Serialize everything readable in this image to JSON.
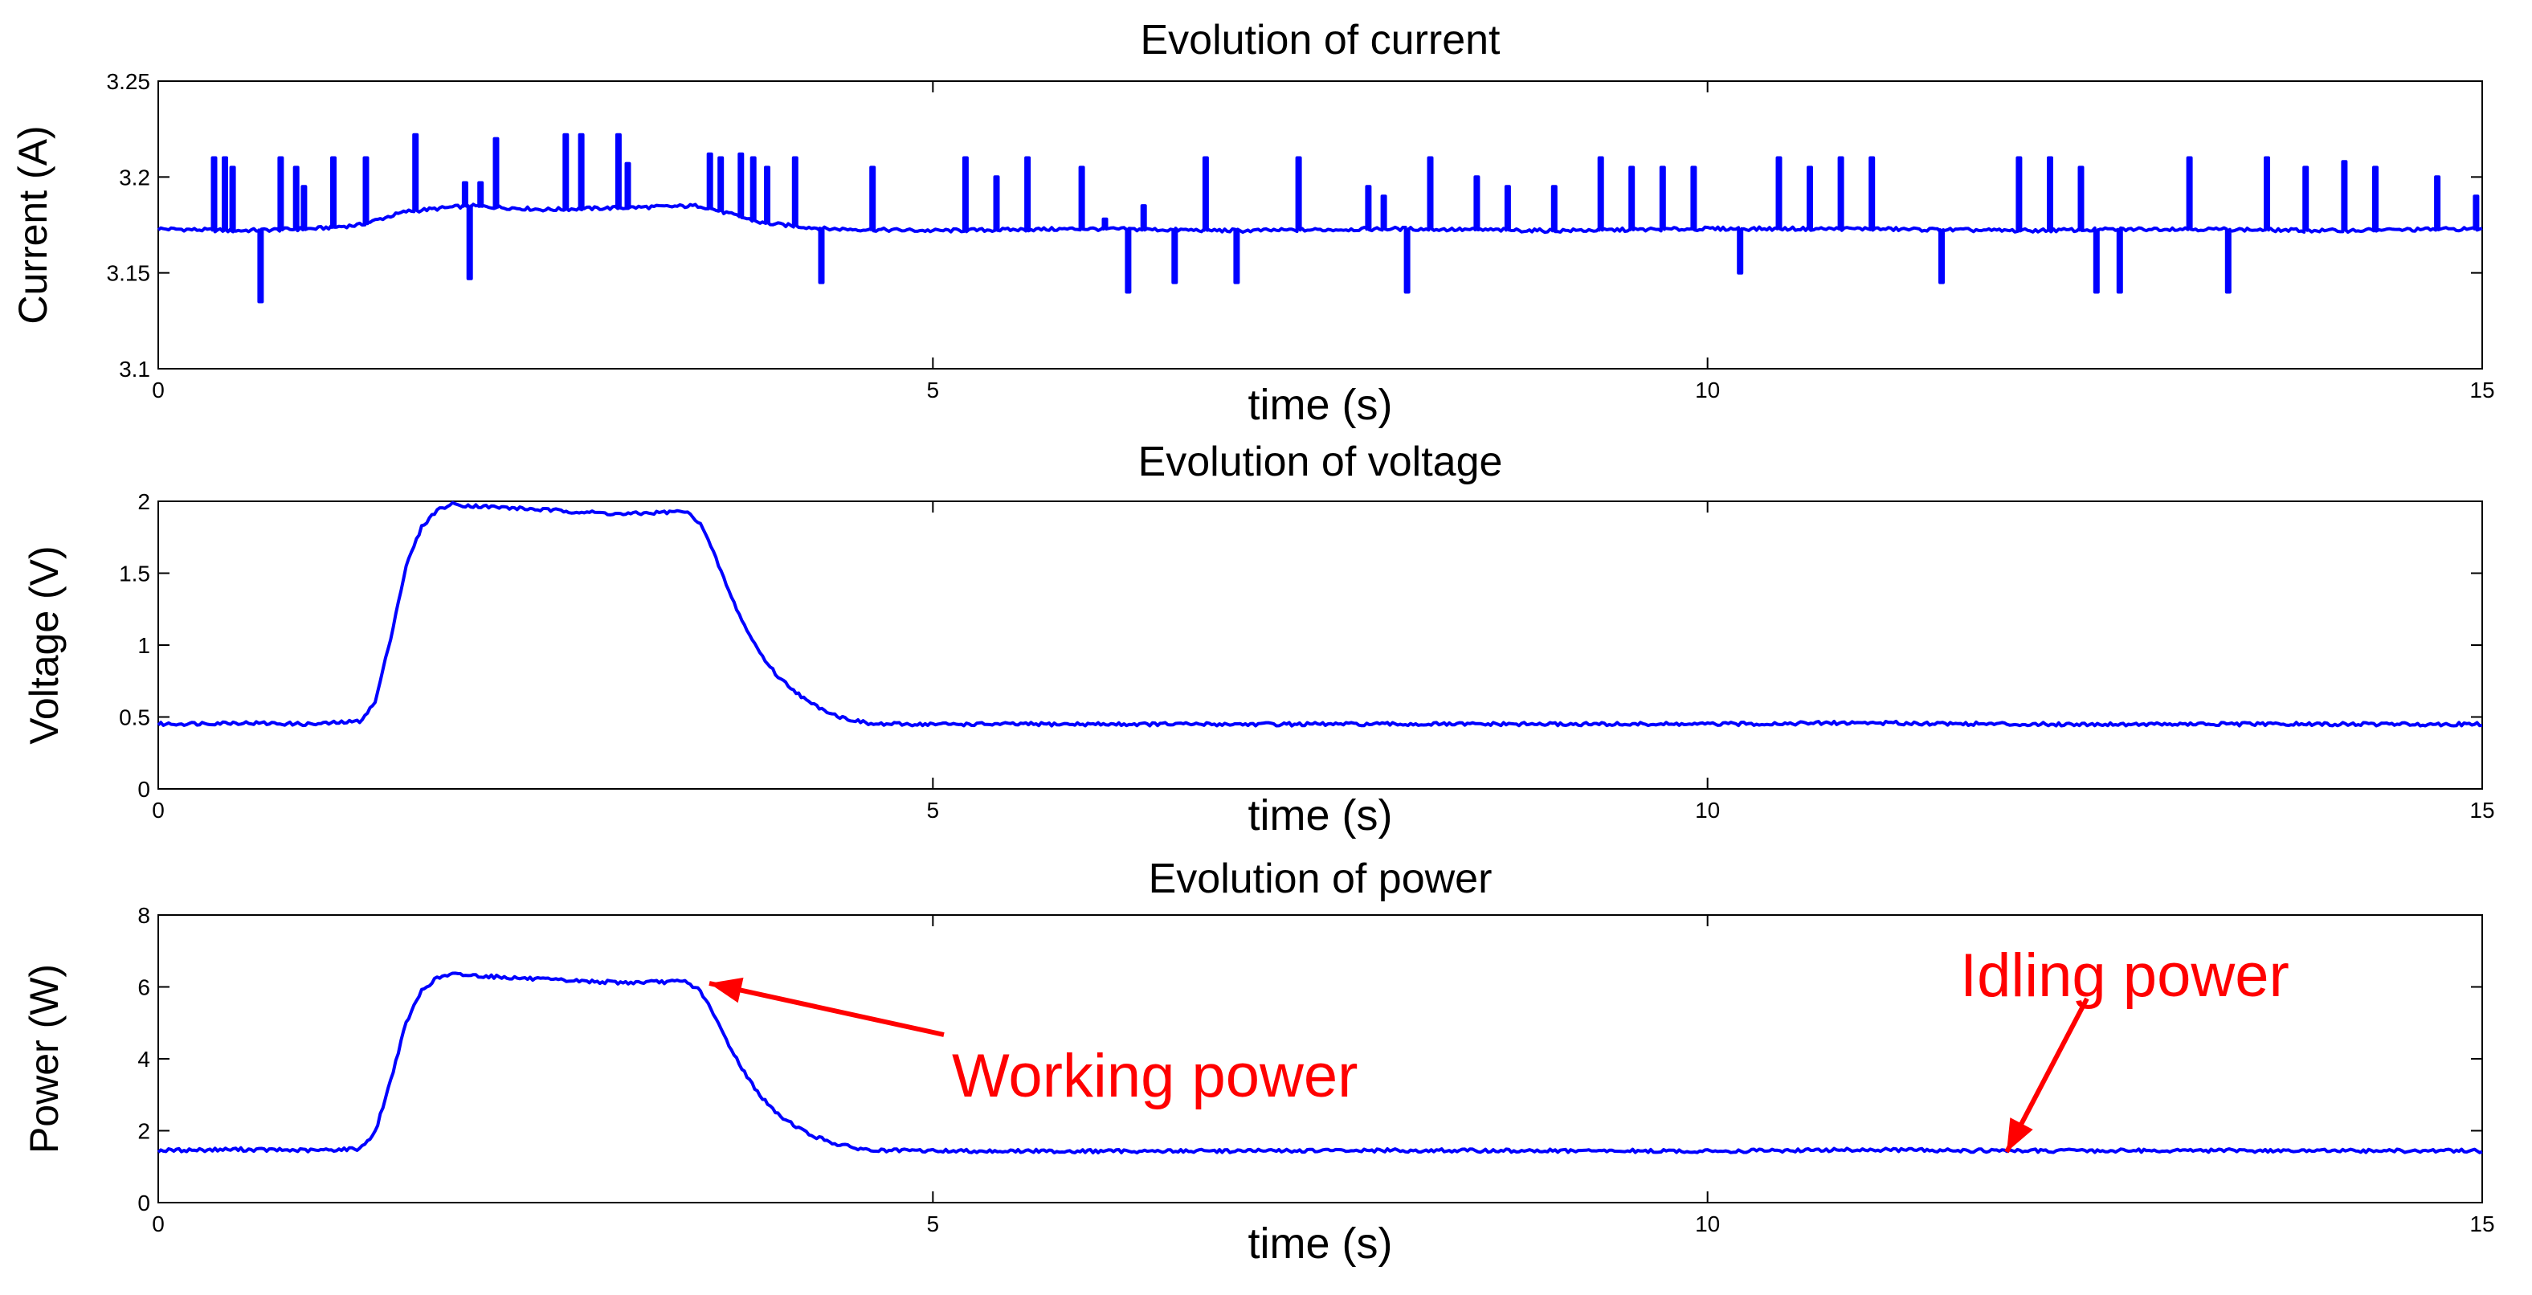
{
  "chart_data": [
    {
      "type": "line",
      "title": "Evolution of current",
      "xlabel": "time (s)",
      "ylabel": "Current (A)",
      "xlim": [
        0,
        15
      ],
      "ylim": [
        3.1,
        3.25
      ],
      "x_ticks": [
        "0",
        "5",
        "10",
        "15"
      ],
      "y_ticks": [
        "3.1",
        "3.15",
        "3.2",
        "3.25"
      ],
      "grid": false,
      "series": [
        {
          "color": "#0000ff",
          "x": [
            0,
            0.5,
            1.0,
            1.3,
            1.6,
            2.0,
            2.5,
            3.0,
            3.5,
            3.9,
            4.3,
            5.0,
            6.0,
            7.0,
            8.0,
            9.0,
            10.0,
            11.0,
            12.0,
            13.0,
            14.0,
            15.0
          ],
          "y": [
            3.173,
            3.172,
            3.173,
            3.175,
            3.182,
            3.185,
            3.183,
            3.184,
            3.185,
            3.176,
            3.173,
            3.172,
            3.173,
            3.172,
            3.173,
            3.172,
            3.173,
            3.173,
            3.172,
            3.173,
            3.172,
            3.173
          ],
          "spikes": [
            [
              0.35,
              3.21
            ],
            [
              0.42,
              3.21
            ],
            [
              0.47,
              3.205
            ],
            [
              0.65,
              3.135
            ],
            [
              0.78,
              3.21
            ],
            [
              0.88,
              3.205
            ],
            [
              0.93,
              3.195
            ],
            [
              1.12,
              3.21
            ],
            [
              1.33,
              3.21
            ],
            [
              1.65,
              3.222
            ],
            [
              1.97,
              3.197
            ],
            [
              2.0,
              3.147
            ],
            [
              2.07,
              3.197
            ],
            [
              2.17,
              3.22
            ],
            [
              2.62,
              3.222
            ],
            [
              2.72,
              3.222
            ],
            [
              2.96,
              3.222
            ],
            [
              3.02,
              3.207
            ],
            [
              3.55,
              3.212
            ],
            [
              3.62,
              3.21
            ],
            [
              3.75,
              3.212
            ],
            [
              3.83,
              3.21
            ],
            [
              3.92,
              3.205
            ],
            [
              4.1,
              3.21
            ],
            [
              4.27,
              3.145
            ],
            [
              4.6,
              3.205
            ],
            [
              5.2,
              3.21
            ],
            [
              5.4,
              3.2
            ],
            [
              5.6,
              3.21
            ],
            [
              5.95,
              3.205
            ],
            [
              6.1,
              3.178
            ],
            [
              6.25,
              3.14
            ],
            [
              6.35,
              3.185
            ],
            [
              6.55,
              3.145
            ],
            [
              6.75,
              3.21
            ],
            [
              6.95,
              3.145
            ],
            [
              7.35,
              3.21
            ],
            [
              7.8,
              3.195
            ],
            [
              7.9,
              3.19
            ],
            [
              8.05,
              3.14
            ],
            [
              8.2,
              3.21
            ],
            [
              8.5,
              3.2
            ],
            [
              8.7,
              3.195
            ],
            [
              9.0,
              3.195
            ],
            [
              9.3,
              3.21
            ],
            [
              9.5,
              3.205
            ],
            [
              9.7,
              3.205
            ],
            [
              9.9,
              3.205
            ],
            [
              10.2,
              3.15
            ],
            [
              10.45,
              3.21
            ],
            [
              10.65,
              3.205
            ],
            [
              10.85,
              3.21
            ],
            [
              11.05,
              3.21
            ],
            [
              11.5,
              3.145
            ],
            [
              12.0,
              3.21
            ],
            [
              12.2,
              3.21
            ],
            [
              12.4,
              3.205
            ],
            [
              12.5,
              3.14
            ],
            [
              12.65,
              3.14
            ],
            [
              13.1,
              3.21
            ],
            [
              13.35,
              3.14
            ],
            [
              13.6,
              3.21
            ],
            [
              13.85,
              3.205
            ],
            [
              14.1,
              3.208
            ],
            [
              14.3,
              3.205
            ],
            [
              14.7,
              3.2
            ],
            [
              14.95,
              3.19
            ]
          ]
        }
      ]
    },
    {
      "type": "line",
      "title": "Evolution of voltage",
      "xlabel": "time (s)",
      "ylabel": "Voltage (V)",
      "xlim": [
        0,
        15
      ],
      "ylim": [
        0,
        2
      ],
      "x_ticks": [
        "0",
        "5",
        "10",
        "15"
      ],
      "y_ticks": [
        "0",
        "0.5",
        "1",
        "1.5",
        "2"
      ],
      "grid": false,
      "series": [
        {
          "color": "#0000ff",
          "x": [
            0,
            0.5,
            1.0,
            1.3,
            1.4,
            1.5,
            1.6,
            1.7,
            1.8,
            1.9,
            2.0,
            2.5,
            3.0,
            3.4,
            3.5,
            3.6,
            3.7,
            3.8,
            3.9,
            4.0,
            4.2,
            4.4,
            4.6,
            5.0,
            6.0,
            7.0,
            8.0,
            9.0,
            10.0,
            11.0,
            12.0,
            13.0,
            14.0,
            15.0
          ],
          "y": [
            0.45,
            0.46,
            0.45,
            0.47,
            0.6,
            1.05,
            1.55,
            1.82,
            1.94,
            1.98,
            1.97,
            1.94,
            1.91,
            1.93,
            1.85,
            1.6,
            1.33,
            1.1,
            0.92,
            0.78,
            0.6,
            0.5,
            0.45,
            0.45,
            0.45,
            0.45,
            0.45,
            0.45,
            0.45,
            0.46,
            0.45,
            0.45,
            0.45,
            0.45
          ]
        }
      ]
    },
    {
      "type": "line",
      "title": "Evolution of power",
      "xlabel": "time (s)",
      "ylabel": "Power (W)",
      "xlim": [
        0,
        15
      ],
      "ylim": [
        0,
        8
      ],
      "x_ticks": [
        "0",
        "5",
        "10",
        "15"
      ],
      "y_ticks": [
        "0",
        "2",
        "4",
        "6",
        "8"
      ],
      "grid": false,
      "series": [
        {
          "color": "#0000ff",
          "x": [
            0,
            0.5,
            1.0,
            1.3,
            1.4,
            1.5,
            1.6,
            1.7,
            1.8,
            1.9,
            2.0,
            2.5,
            3.0,
            3.4,
            3.5,
            3.6,
            3.7,
            3.8,
            3.9,
            4.0,
            4.2,
            4.4,
            4.6,
            5.0,
            6.0,
            7.0,
            8.0,
            9.0,
            10.0,
            11.0,
            12.0,
            13.0,
            14.0,
            15.0
          ],
          "y": [
            1.45,
            1.48,
            1.45,
            1.5,
            1.95,
            3.4,
            5.0,
            5.9,
            6.25,
            6.35,
            6.33,
            6.2,
            6.12,
            6.15,
            5.9,
            5.1,
            4.25,
            3.5,
            2.9,
            2.45,
            1.9,
            1.6,
            1.45,
            1.44,
            1.43,
            1.44,
            1.45,
            1.44,
            1.43,
            1.47,
            1.44,
            1.45,
            1.44,
            1.44
          ]
        }
      ],
      "annotations": [
        {
          "text": "Working power",
          "color": "#ff0000",
          "target": [
            3.5,
            6.15
          ]
        },
        {
          "text": "Idling power",
          "color": "#ff0000",
          "target": [
            12.0,
            1.5
          ]
        }
      ]
    }
  ]
}
